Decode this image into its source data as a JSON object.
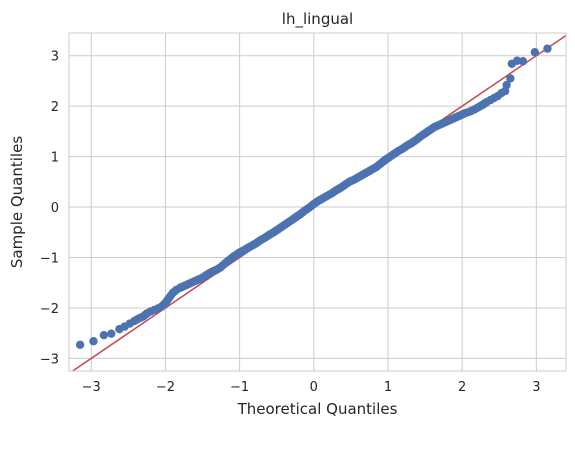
{
  "chart_data": {
    "type": "scatter",
    "title": "lh_lingual",
    "xlabel": "Theoretical Quantiles",
    "ylabel": "Sample Quantiles",
    "xlim": [
      -3.3,
      3.4
    ],
    "ylim": [
      -3.25,
      3.45
    ],
    "xticks": [
      -3,
      -2,
      -1,
      0,
      1,
      2,
      3
    ],
    "yticks": [
      -3,
      -2,
      -1,
      0,
      1,
      2,
      3
    ],
    "grid": true,
    "reference_line": {
      "slope": 1,
      "intercept": 0,
      "color": "#c44e52"
    },
    "marker_color": "#4c72b0",
    "series": [
      {
        "points": [
          [
            -3.15,
            -2.73
          ],
          [
            -2.97,
            -2.66
          ],
          [
            -2.83,
            -2.54
          ],
          [
            -2.73,
            -2.51
          ],
          [
            -2.62,
            -2.42
          ],
          [
            -2.55,
            -2.37
          ],
          [
            -2.48,
            -2.31
          ],
          [
            -2.42,
            -2.26
          ],
          [
            -2.36,
            -2.21
          ],
          [
            -2.3,
            -2.17
          ],
          [
            -2.25,
            -2.11
          ],
          [
            -2.2,
            -2.07
          ],
          [
            -2.15,
            -2.04
          ],
          [
            -2.1,
            -2.01
          ],
          [
            -2.05,
            -1.97
          ],
          [
            -2.0,
            -1.9
          ],
          [
            -1.95,
            -1.8
          ],
          [
            -1.9,
            -1.7
          ],
          [
            -1.85,
            -1.64
          ],
          [
            -1.8,
            -1.6
          ],
          [
            -1.74,
            -1.56
          ],
          [
            -1.68,
            -1.52
          ],
          [
            -1.62,
            -1.48
          ],
          [
            -1.56,
            -1.44
          ],
          [
            -1.5,
            -1.4
          ],
          [
            -1.44,
            -1.34
          ],
          [
            -1.38,
            -1.29
          ],
          [
            -1.32,
            -1.25
          ],
          [
            -1.26,
            -1.2
          ],
          [
            -1.2,
            -1.12
          ],
          [
            -1.14,
            -1.05
          ],
          [
            -1.08,
            -0.98
          ],
          [
            -1.02,
            -0.92
          ],
          [
            -0.96,
            -0.87
          ],
          [
            -0.9,
            -0.82
          ],
          [
            -0.84,
            -0.77
          ],
          [
            -0.78,
            -0.72
          ],
          [
            -0.72,
            -0.66
          ],
          [
            -0.66,
            -0.61
          ],
          [
            -0.6,
            -0.55
          ],
          [
            -0.54,
            -0.5
          ],
          [
            -0.48,
            -0.44
          ],
          [
            -0.42,
            -0.38
          ],
          [
            -0.36,
            -0.32
          ],
          [
            -0.3,
            -0.26
          ],
          [
            -0.24,
            -0.2
          ],
          [
            -0.18,
            -0.14
          ],
          [
            -0.12,
            -0.07
          ],
          [
            -0.06,
            -0.01
          ],
          [
            0.0,
            0.06
          ],
          [
            0.06,
            0.12
          ],
          [
            0.12,
            0.17
          ],
          [
            0.18,
            0.22
          ],
          [
            0.24,
            0.27
          ],
          [
            0.3,
            0.33
          ],
          [
            0.36,
            0.38
          ],
          [
            0.42,
            0.44
          ],
          [
            0.48,
            0.5
          ],
          [
            0.54,
            0.54
          ],
          [
            0.6,
            0.59
          ],
          [
            0.66,
            0.64
          ],
          [
            0.72,
            0.69
          ],
          [
            0.78,
            0.74
          ],
          [
            0.84,
            0.79
          ],
          [
            0.9,
            0.86
          ],
          [
            0.96,
            0.93
          ],
          [
            1.02,
            0.99
          ],
          [
            1.08,
            1.05
          ],
          [
            1.14,
            1.11
          ],
          [
            1.2,
            1.16
          ],
          [
            1.26,
            1.22
          ],
          [
            1.32,
            1.27
          ],
          [
            1.38,
            1.33
          ],
          [
            1.44,
            1.4
          ],
          [
            1.5,
            1.46
          ],
          [
            1.56,
            1.52
          ],
          [
            1.62,
            1.58
          ],
          [
            1.68,
            1.62
          ],
          [
            1.74,
            1.66
          ],
          [
            1.8,
            1.7
          ],
          [
            1.86,
            1.74
          ],
          [
            1.92,
            1.78
          ],
          [
            1.98,
            1.82
          ],
          [
            2.04,
            1.86
          ],
          [
            2.1,
            1.89
          ],
          [
            2.16,
            1.93
          ],
          [
            2.22,
            1.98
          ],
          [
            2.28,
            2.03
          ],
          [
            2.33,
            2.08
          ],
          [
            2.38,
            2.12
          ],
          [
            2.43,
            2.16
          ],
          [
            2.48,
            2.2
          ],
          [
            2.53,
            2.26
          ],
          [
            2.58,
            2.3
          ],
          [
            2.6,
            2.42
          ],
          [
            2.65,
            2.55
          ],
          [
            2.67,
            2.84
          ],
          [
            2.74,
            2.9
          ],
          [
            2.82,
            2.89
          ],
          [
            2.98,
            3.07
          ],
          [
            3.15,
            3.14
          ]
        ]
      }
    ]
  }
}
